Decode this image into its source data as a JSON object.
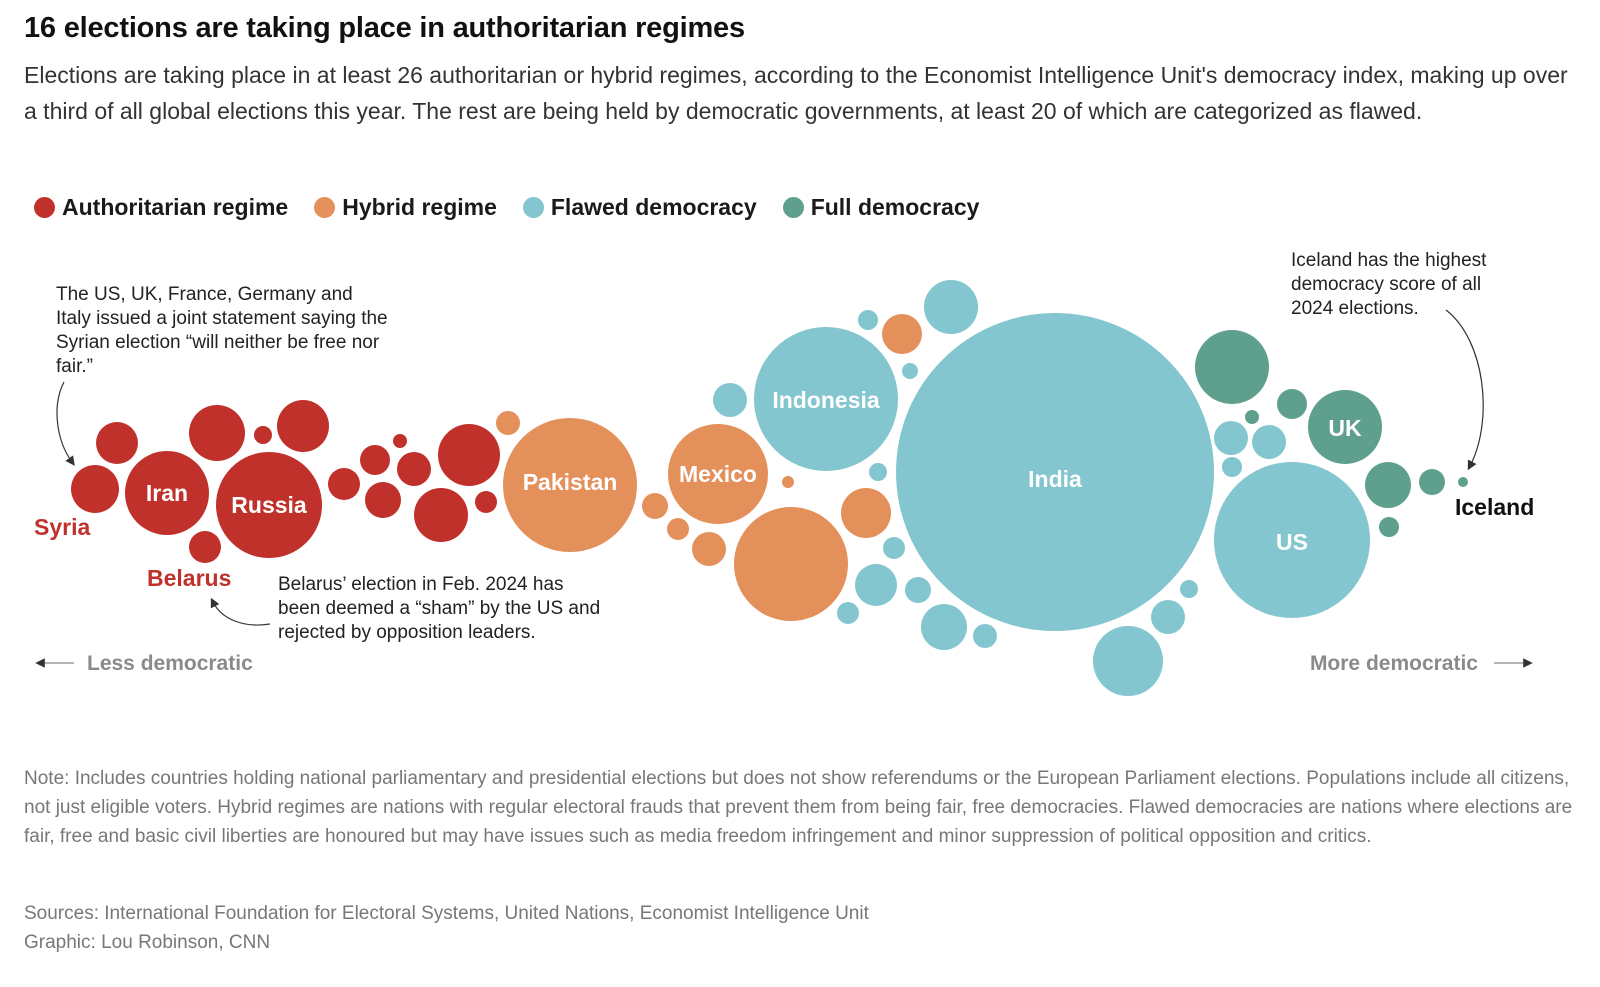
{
  "header": {
    "title": "16 elections are taking place in authoritarian regimes",
    "subtitle": "Elections are taking place in at least 26 authoritarian or hybrid regimes, according to the Economist Intelligence Unit's democracy index, making up over a third of all global elections this year. The rest are being held by democratic governments, at least 20 of which are categorized as flawed."
  },
  "legend": [
    {
      "label": "Authoritarian regime",
      "color": "#c0312b"
    },
    {
      "label": "Hybrid regime",
      "color": "#e4905b"
    },
    {
      "label": "Flawed democracy",
      "color": "#83c6cf"
    },
    {
      "label": "Full democracy",
      "color": "#5e9f8e"
    }
  ],
  "annotations": {
    "syria": "The US, UK, France, Germany and Italy issued a joint statement saying the Syrian election “will neither be free nor fair.”",
    "belarus": "Belarus’ election in Feb. 2024 has been deemed a “sham” by the US and rejected by opposition leaders.",
    "iceland": "Iceland has the highest democracy score of all 2024 elections."
  },
  "axis": {
    "left_label": "Less democratic",
    "right_label": "More democratic"
  },
  "chart_data": {
    "type": "scatter",
    "encoding": "bubble",
    "x_axis": "democracy level (less → more democratic)",
    "labeled_countries": [
      {
        "name": "Syria",
        "regime": "Authoritarian regime"
      },
      {
        "name": "Belarus",
        "regime": "Authoritarian regime"
      },
      {
        "name": "Iran",
        "regime": "Authoritarian regime"
      },
      {
        "name": "Russia",
        "regime": "Authoritarian regime"
      },
      {
        "name": "Pakistan",
        "regime": "Hybrid regime"
      },
      {
        "name": "Mexico",
        "regime": "Hybrid regime"
      },
      {
        "name": "Indonesia",
        "regime": "Flawed democracy"
      },
      {
        "name": "India",
        "regime": "Flawed democracy"
      },
      {
        "name": "US",
        "regime": "Flawed democracy"
      },
      {
        "name": "UK",
        "regime": "Full democracy"
      },
      {
        "name": "Iceland",
        "regime": "Full democracy"
      }
    ]
  },
  "footer": {
    "note": "Note: Includes countries holding national parliamentary and presidential elections but does not show referendums or the European Parliament elections. Populations include all citizens, not just eligible voters. Hybrid regimes are nations with regular electoral frauds that prevent them from being fair, free democracies. Flawed democracies are nations where elections are fair, free and basic civil liberties are honoured but may have issues such as media freedom infringement and minor suppression of political opposition and critics.",
    "sources": "Sources: International Foundation for Electoral Systems, United Nations, Economist Intelligence Unit",
    "credit": "Graphic: Lou Robinson, CNN"
  }
}
